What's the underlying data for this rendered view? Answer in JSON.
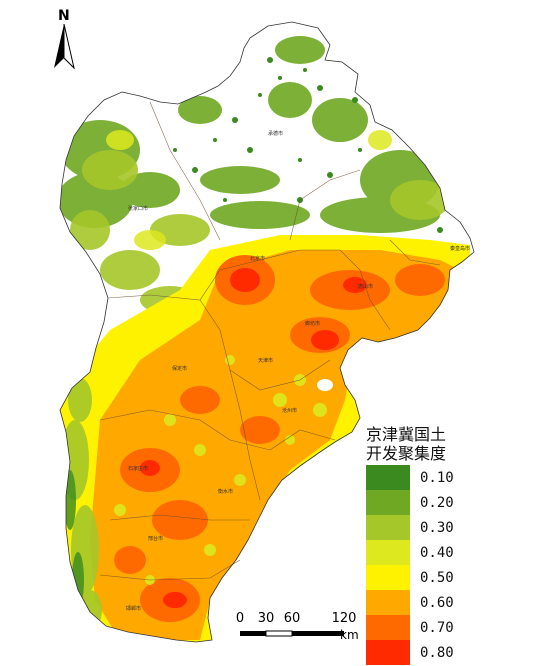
{
  "legend": {
    "title_line1": "京津冀国土",
    "title_line2": "开发聚集度",
    "items": [
      {
        "label": "0.10",
        "color": "#3a8a1f"
      },
      {
        "label": "0.20",
        "color": "#6fa822"
      },
      {
        "label": "0.30",
        "color": "#a6c72a"
      },
      {
        "label": "0.40",
        "color": "#dde81f"
      },
      {
        "label": "0.50",
        "color": "#fff200"
      },
      {
        "label": "0.60",
        "color": "#ffa800"
      },
      {
        "label": "0.70",
        "color": "#ff6a00"
      },
      {
        "label": "0.80",
        "color": "#ff2a00"
      }
    ]
  },
  "north_arrow": {
    "letter": "N"
  },
  "scale_bar": {
    "ticks": [
      "0",
      "30",
      "60",
      "120"
    ],
    "tick_values": [
      0,
      30,
      60,
      120
    ],
    "unit": "km"
  },
  "city_labels": [
    "承德市",
    "张家口市",
    "唐山市",
    "秦皇岛市",
    "廊坊市",
    "保定市",
    "沧州市",
    "衡水市",
    "石家庄市",
    "邢台市",
    "邯郸市",
    "天津市",
    "北京市"
  ]
}
